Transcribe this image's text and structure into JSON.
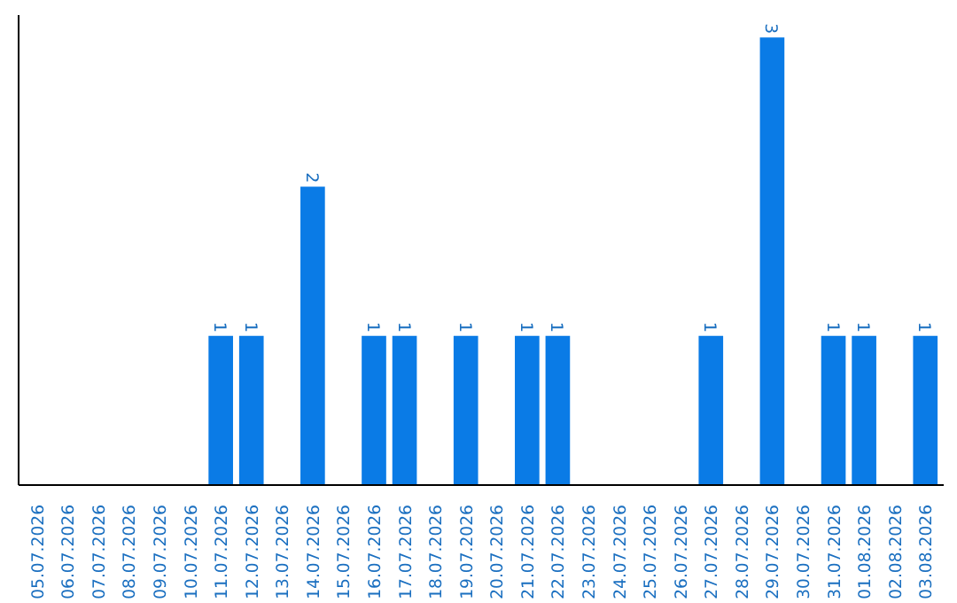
{
  "chart_data": {
    "type": "bar",
    "categories": [
      "05.07.2026",
      "06.07.2026",
      "07.07.2026",
      "08.07.2026",
      "09.07.2026",
      "10.07.2026",
      "11.07.2026",
      "12.07.2026",
      "13.07.2026",
      "14.07.2026",
      "15.07.2026",
      "16.07.2026",
      "17.07.2026",
      "18.07.2026",
      "19.07.2026",
      "20.07.2026",
      "21.07.2026",
      "22.07.2026",
      "23.07.2026",
      "24.07.2026",
      "25.07.2026",
      "26.07.2026",
      "27.07.2026",
      "28.07.2026",
      "29.07.2026",
      "30.07.2026",
      "31.07.2026",
      "01.08.2026",
      "02.08.2026",
      "03.08.2026"
    ],
    "values": [
      0,
      0,
      0,
      0,
      0,
      0,
      1,
      1,
      0,
      2,
      0,
      1,
      1,
      0,
      1,
      0,
      1,
      1,
      0,
      0,
      0,
      0,
      1,
      0,
      3,
      0,
      1,
      1,
      0,
      1
    ],
    "value_labels": [
      null,
      null,
      null,
      null,
      null,
      null,
      "1",
      "1",
      null,
      "2",
      null,
      "1",
      "1",
      null,
      "1",
      null,
      "1",
      "1",
      null,
      null,
      null,
      null,
      "1",
      null,
      "3",
      null,
      "1",
      "1",
      null,
      "1"
    ],
    "color": "#0a7be6",
    "grid": false,
    "tick_labels": "x"
  }
}
